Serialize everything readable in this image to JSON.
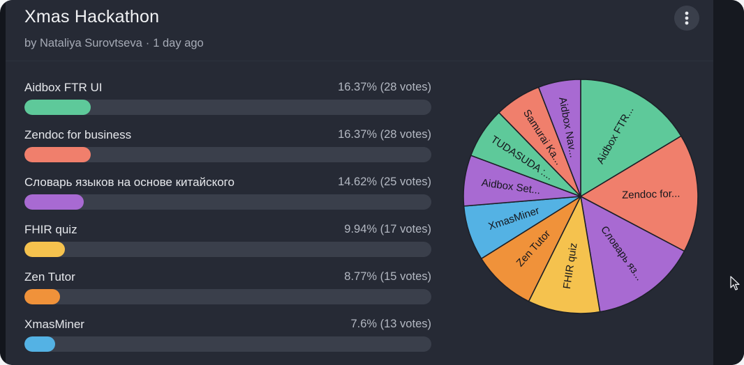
{
  "poll": {
    "title": "Xmas Hackathon",
    "author": "by Nataliya Surovtseva",
    "separator": "·",
    "age": "1 day ago"
  },
  "options": [
    {
      "label": "Aidbox FTR UI",
      "stats": "16.37% (28 votes)",
      "percent": 16.37,
      "color": "#5ec99a"
    },
    {
      "label": "Zendoc for business",
      "stats": "16.37% (28 votes)",
      "percent": 16.37,
      "color": "#f07f6c"
    },
    {
      "label": "Словарь языков на основе китайского",
      "stats": "14.62% (25 votes)",
      "percent": 14.62,
      "color": "#a86ad2"
    },
    {
      "label": "FHIR quiz",
      "stats": "9.94% (17 votes)",
      "percent": 9.94,
      "color": "#f5c24e"
    },
    {
      "label": "Zen Tutor",
      "stats": "8.77% (15 votes)",
      "percent": 8.77,
      "color": "#f0923a"
    },
    {
      "label": "XmasMiner",
      "stats": "7.6% (13 votes)",
      "percent": 7.6,
      "color": "#54b2e4"
    }
  ],
  "chart_data": {
    "type": "pie",
    "slices": [
      {
        "label": "Aidbox FTR...",
        "value": 28,
        "color": "#5ec99a"
      },
      {
        "label": "Zendoc for...",
        "value": 28,
        "color": "#f07f6c"
      },
      {
        "label": "Словарь яз...",
        "value": 25,
        "color": "#a86ad2"
      },
      {
        "label": "FHIR quiz",
        "value": 17,
        "color": "#f5c24e"
      },
      {
        "label": "Zen Tutor",
        "value": 15,
        "color": "#f0923a"
      },
      {
        "label": "XmasMiner",
        "value": 13,
        "color": "#54b2e4"
      },
      {
        "label": "Aidbox Set...",
        "value": 12,
        "color": "#a86ad2"
      },
      {
        "label": "TUDASUDA :...",
        "value": 12,
        "color": "#5ec99a"
      },
      {
        "label": "Samurai Ka...",
        "value": 11,
        "color": "#f07f6c"
      },
      {
        "label": "Aidbox Nav...",
        "value": 10,
        "color": "#a86ad2"
      }
    ]
  },
  "icons": {
    "menu": "more-vertical-icon",
    "cursor": "mouse-pointer-icon"
  }
}
